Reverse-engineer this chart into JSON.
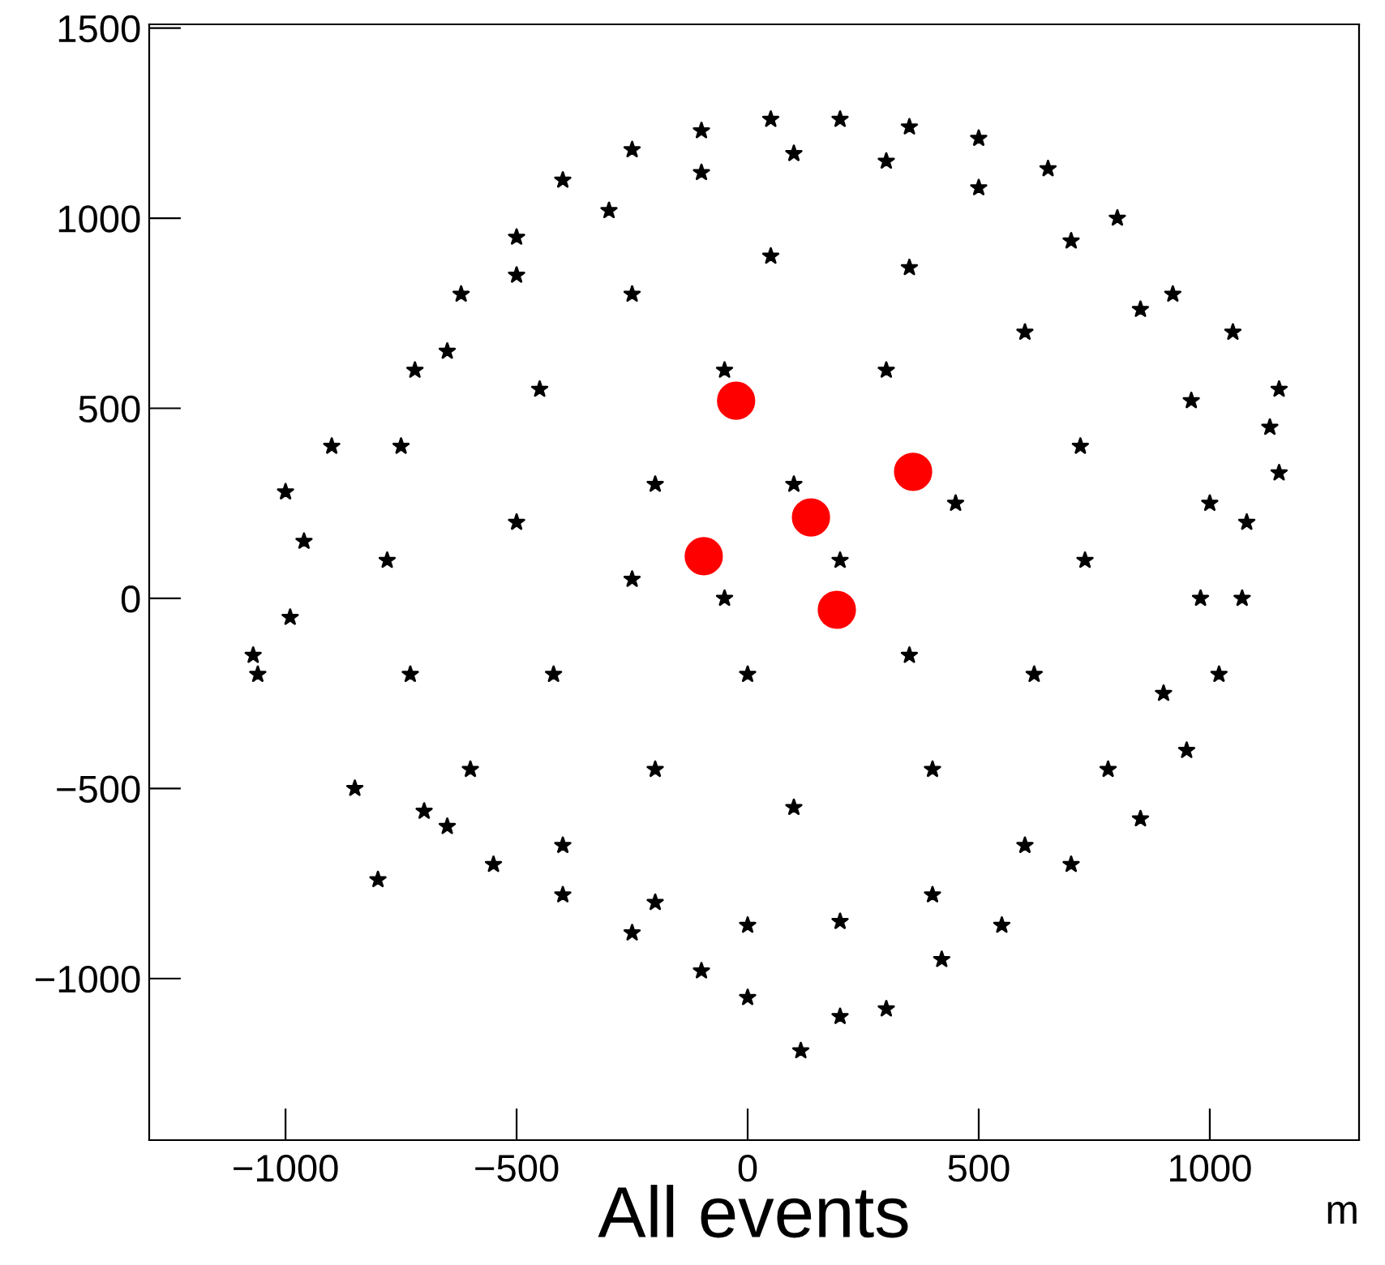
{
  "chart_data": {
    "type": "scatter",
    "xlabel": "All events",
    "annotations": [
      "m"
    ],
    "xlim": [
      -1295,
      1323
    ],
    "ylim": [
      -1425,
      1510
    ],
    "xticks": [
      {
        "value": -1000,
        "label": "−1000"
      },
      {
        "value": -500,
        "label": "−500"
      },
      0,
      500,
      1000
    ],
    "yticks": [
      {
        "value": -1000,
        "label": "−1000"
      },
      {
        "value": -500,
        "label": "−500"
      },
      0,
      500,
      1000,
      1500
    ],
    "grid": false,
    "legend": false,
    "series": [
      {
        "color": "#000000",
        "marker": "star",
        "x": [
          -1070,
          -1060,
          -990,
          -1000,
          -960,
          -900,
          -850,
          -800,
          -700,
          -720,
          -620,
          -500,
          -400,
          -250,
          -100,
          50,
          200,
          350,
          500,
          650,
          800,
          920,
          1050,
          1150,
          1150,
          1130,
          1080,
          1070,
          1020,
          950,
          850,
          700,
          550,
          420,
          300,
          200,
          115,
          0,
          -100,
          -250,
          -400,
          -550,
          -650,
          -780,
          -750,
          -650,
          -500,
          -300,
          -100,
          100,
          300,
          500,
          700,
          850,
          960,
          1000,
          980,
          900,
          780,
          600,
          400,
          200,
          0,
          -200,
          -400,
          -600,
          -730,
          -500,
          -450,
          -250,
          50,
          350,
          600,
          720,
          730,
          620,
          400,
          100,
          -200,
          -420,
          -200,
          -50,
          300,
          450,
          350,
          0,
          -250,
          100,
          200,
          -50
        ],
        "values": [
          -150,
          -200,
          -50,
          280,
          150,
          400,
          -500,
          -740,
          -560,
          600,
          800,
          950,
          1100,
          1180,
          1230,
          1260,
          1260,
          1240,
          1210,
          1130,
          1000,
          800,
          700,
          550,
          330,
          450,
          200,
          0,
          -200,
          -400,
          -580,
          -700,
          -860,
          -950,
          -1080,
          -1100,
          -1190,
          -1050,
          -980,
          -880,
          -780,
          -700,
          -600,
          100,
          400,
          650,
          850,
          1020,
          1120,
          1170,
          1150,
          1080,
          940,
          760,
          520,
          250,
          0,
          -250,
          -450,
          -650,
          -780,
          -850,
          -860,
          -800,
          -650,
          -450,
          -200,
          200,
          550,
          800,
          900,
          870,
          700,
          400,
          100,
          -200,
          -450,
          -550,
          -450,
          -200,
          300,
          600,
          600,
          250,
          -150,
          -200,
          50,
          300,
          100,
          0
        ]
      },
      {
        "color": "#ff0000",
        "marker": "circle",
        "x": [
          -95,
          -25,
          137,
          358,
          193
        ],
        "values": [
          111,
          520,
          213,
          333,
          -30
        ]
      }
    ]
  }
}
